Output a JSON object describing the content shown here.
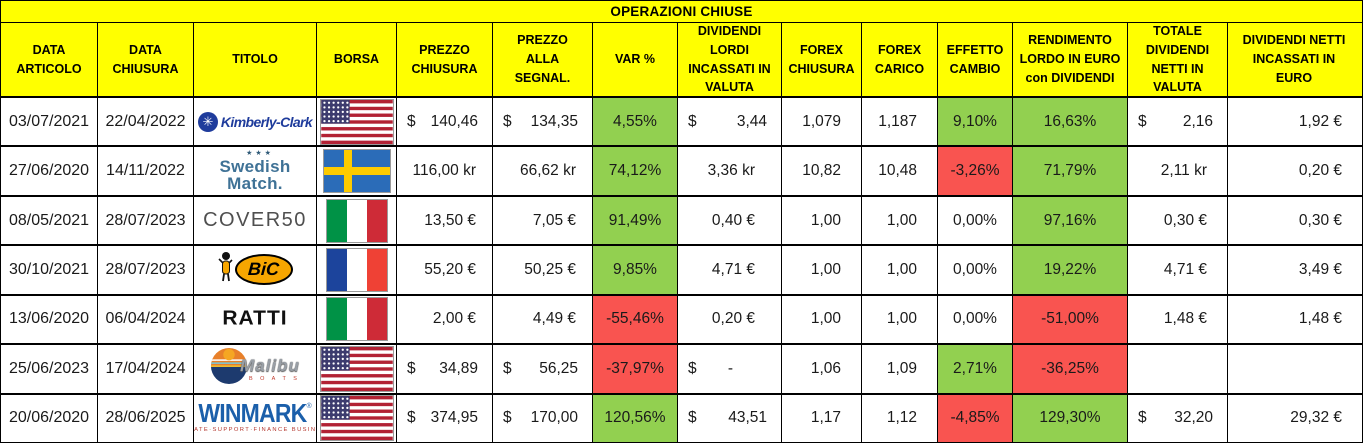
{
  "title": "OPERAZIONI CHIUSE",
  "colors": {
    "yellow": "#FFFF00",
    "green": "#92D050",
    "red": "#F95450"
  },
  "columns": [
    {
      "id": "data_articolo",
      "label": "DATA\nARTICOLO"
    },
    {
      "id": "data_chiusura",
      "label": "DATA\nCHIUSURA"
    },
    {
      "id": "titolo",
      "label": "TITOLO"
    },
    {
      "id": "borsa",
      "label": "BORSA"
    },
    {
      "id": "prezzo_chiusura",
      "label": "PREZZO\nCHIUSURA"
    },
    {
      "id": "prezzo_segnal",
      "label": "PREZZO\nALLA\nSEGNAL."
    },
    {
      "id": "var_pct",
      "label": "VAR %"
    },
    {
      "id": "div_lordi",
      "label": "DIVIDENDI\nLORDI\nINCASSATI IN\nVALUTA"
    },
    {
      "id": "forex_chiusura",
      "label": "FOREX\nCHIUSURA"
    },
    {
      "id": "forex_carico",
      "label": "FOREX\nCARICO"
    },
    {
      "id": "effetto_cambio",
      "label": "EFFETTO\nCAMBIO"
    },
    {
      "id": "rendimento",
      "label": "RENDIMENTO\nLORDO IN EURO\ncon DIVIDENDI"
    },
    {
      "id": "tot_div_netti",
      "label": "TOTALE\nDIVIDENDI\nNETTI IN\nVALUTA"
    },
    {
      "id": "div_netti_euro",
      "label": "DIVIDENDI NETTI\nINCASSATI IN\nEURO"
    }
  ],
  "logos": {
    "kimberly-clark": {
      "icon": "✳",
      "name": "Kimberly-Clark"
    },
    "swedish-match": {
      "stars": "★★★",
      "line1": "Swedish",
      "line2": "Match."
    },
    "cover50": {
      "name": "COVER50"
    },
    "bic": {
      "name": "BiC"
    },
    "ratti": {
      "name": "RATTI"
    },
    "malibu": {
      "name": "Malibu",
      "sub": "B O A T S"
    },
    "winmark": {
      "name": "WINMARK",
      "reg": "®",
      "tagline": "CREATE·SUPPORT·FINANCE BUSINESS"
    }
  },
  "rows": [
    {
      "data_articolo": "03/07/2021",
      "data_chiusura": "22/04/2022",
      "logo": "kimberly-clark",
      "flag": "us",
      "prezzo_chiusura": {
        "p": "$",
        "v": "140,46"
      },
      "prezzo_segnal": {
        "p": "$",
        "v": "134,35"
      },
      "var_pct": {
        "t": "4,55%",
        "bg": "green"
      },
      "div_lordi": {
        "p": "$",
        "v": "3,44"
      },
      "forex_chiusura": "1,079",
      "forex_carico": "1,187",
      "effetto_cambio": {
        "t": "9,10%",
        "bg": "green"
      },
      "rendimento": {
        "t": "16,63%",
        "bg": "green"
      },
      "tot_div_netti": {
        "p": "$",
        "v": "2,16"
      },
      "div_netti_euro": "1,92 €"
    },
    {
      "data_articolo": "27/06/2020",
      "data_chiusura": "14/11/2022",
      "logo": "swedish-match",
      "flag": "se",
      "prezzo_chiusura": "116,00 kr",
      "prezzo_segnal": "66,62 kr",
      "var_pct": {
        "t": "74,12%",
        "bg": "green"
      },
      "div_lordi": "3,36 kr",
      "forex_chiusura": "10,82",
      "forex_carico": "10,48",
      "effetto_cambio": {
        "t": "-3,26%",
        "bg": "red"
      },
      "rendimento": {
        "t": "71,79%",
        "bg": "green"
      },
      "tot_div_netti": "2,11 kr",
      "div_netti_euro": "0,20 €"
    },
    {
      "data_articolo": "08/05/2021",
      "data_chiusura": "28/07/2023",
      "logo": "cover50",
      "flag": "it",
      "prezzo_chiusura": "13,50 €",
      "prezzo_segnal": "7,05 €",
      "var_pct": {
        "t": "91,49%",
        "bg": "green"
      },
      "div_lordi": "0,40 €",
      "forex_chiusura": "1,00",
      "forex_carico": "1,00",
      "effetto_cambio": {
        "t": "0,00%",
        "bg": "none"
      },
      "rendimento": {
        "t": "97,16%",
        "bg": "green"
      },
      "tot_div_netti": "0,30 €",
      "div_netti_euro": "0,30 €"
    },
    {
      "data_articolo": "30/10/2021",
      "data_chiusura": "28/07/2023",
      "logo": "bic",
      "flag": "fr",
      "prezzo_chiusura": "55,20 €",
      "prezzo_segnal": "50,25 €",
      "var_pct": {
        "t": "9,85%",
        "bg": "green"
      },
      "div_lordi": "4,71 €",
      "forex_chiusura": "1,00",
      "forex_carico": "1,00",
      "effetto_cambio": {
        "t": "0,00%",
        "bg": "none"
      },
      "rendimento": {
        "t": "19,22%",
        "bg": "green"
      },
      "tot_div_netti": "4,71 €",
      "div_netti_euro": "3,49 €"
    },
    {
      "data_articolo": "13/06/2020",
      "data_chiusura": "06/04/2024",
      "logo": "ratti",
      "flag": "it",
      "prezzo_chiusura": "2,00 €",
      "prezzo_segnal": "4,49 €",
      "var_pct": {
        "t": "-55,46%",
        "bg": "red"
      },
      "div_lordi": "0,20 €",
      "forex_chiusura": "1,00",
      "forex_carico": "1,00",
      "effetto_cambio": {
        "t": "0,00%",
        "bg": "none"
      },
      "rendimento": {
        "t": "-51,00%",
        "bg": "red"
      },
      "tot_div_netti": "1,48 €",
      "div_netti_euro": "1,48 €"
    },
    {
      "data_articolo": "25/06/2023",
      "data_chiusura": "17/04/2024",
      "logo": "malibu",
      "flag": "us",
      "prezzo_chiusura": {
        "p": "$",
        "v": "34,89"
      },
      "prezzo_segnal": {
        "p": "$",
        "v": "56,25"
      },
      "var_pct": {
        "t": "-37,97%",
        "bg": "red"
      },
      "div_lordi": {
        "p": "$",
        "v": "-"
      },
      "forex_chiusura": "1,06",
      "forex_carico": "1,09",
      "effetto_cambio": {
        "t": "2,71%",
        "bg": "green"
      },
      "rendimento": {
        "t": "-36,25%",
        "bg": "red"
      },
      "tot_div_netti": "",
      "div_netti_euro": ""
    },
    {
      "data_articolo": "20/06/2020",
      "data_chiusura": "28/06/2025",
      "logo": "winmark",
      "flag": "us",
      "prezzo_chiusura": {
        "p": "$",
        "v": "374,95"
      },
      "prezzo_segnal": {
        "p": "$",
        "v": "170,00"
      },
      "var_pct": {
        "t": "120,56%",
        "bg": "green"
      },
      "div_lordi": {
        "p": "$",
        "v": "43,51"
      },
      "forex_chiusura": "1,17",
      "forex_carico": "1,12",
      "effetto_cambio": {
        "t": "-4,85%",
        "bg": "red"
      },
      "rendimento": {
        "t": "129,30%",
        "bg": "green"
      },
      "tot_div_netti": {
        "p": "$",
        "v": "32,20"
      },
      "div_netti_euro": "29,32 €"
    }
  ]
}
